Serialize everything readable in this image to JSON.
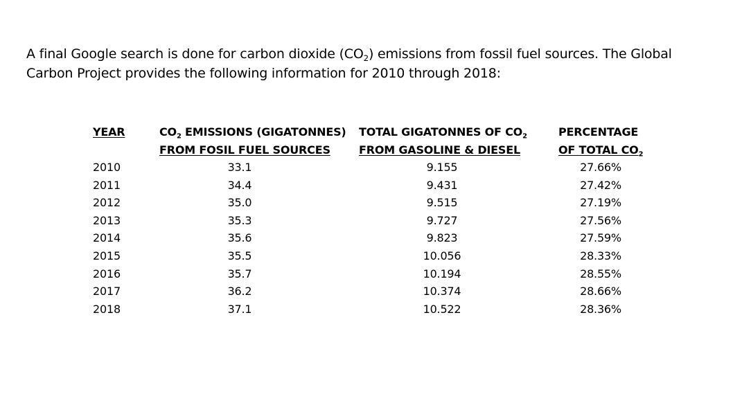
{
  "intro": {
    "line1_pre": "A final Google search is done for carbon dioxide (CO",
    "line1_sub": "2",
    "line1_post": ") emissions from fossil fuel sources. The Global",
    "line2": "Carbon Project provides the following information for 2010 through 2018:"
  },
  "table": {
    "headers": {
      "year": "YEAR",
      "co2_line1_pre": "CO",
      "co2_line1_sub": "2",
      "co2_line1_post": " EMISSIONS (GIGATONNES)",
      "co2_line2": "FROM FOSIL FUEL SOURCES",
      "gas_line1_pre": "TOTAL GIGATONNES OF CO",
      "gas_line1_sub": "2",
      "gas_line2": "FROM GASOLINE & DIESEL",
      "pct_line1": "PERCENTAGE",
      "pct_line2_pre": "OF TOTAL CO",
      "pct_line2_sub": "2"
    },
    "rows": [
      {
        "year": "2010",
        "co2": "33.1",
        "gas": "9.155",
        "pct": "27.66%"
      },
      {
        "year": "2011",
        "co2": "34.4",
        "gas": "9.431",
        "pct": "27.42%"
      },
      {
        "year": "2012",
        "co2": "35.0",
        "gas": "9.515",
        "pct": "27.19%"
      },
      {
        "year": "2013",
        "co2": "35.3",
        "gas": "9.727",
        "pct": "27.56%"
      },
      {
        "year": "2014",
        "co2": "35.6",
        "gas": "9.823",
        "pct": "27.59%"
      },
      {
        "year": "2015",
        "co2": "35.5",
        "gas": "10.056",
        "pct": "28.33%"
      },
      {
        "year": "2016",
        "co2": "35.7",
        "gas": "10.194",
        "pct": "28.55%"
      },
      {
        "year": "2017",
        "co2": "36.2",
        "gas": "10.374",
        "pct": "28.66%"
      },
      {
        "year": "2018",
        "co2": "37.1",
        "gas": "10.522",
        "pct": "28.36%"
      }
    ]
  }
}
